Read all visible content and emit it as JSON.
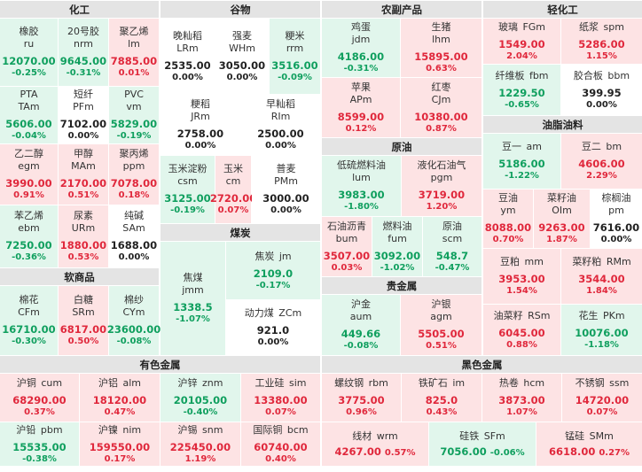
{
  "sections": {
    "chem": "化工",
    "grain": "谷物",
    "agri": "农副产品",
    "light": "轻化工",
    "soft": "软商品",
    "coal": "煤炭",
    "crude": "原油",
    "oil": "油脂油料",
    "precious": "贵金属",
    "nonferrous": "有色金属",
    "ferrous": "黑色金属"
  },
  "cells": {
    "ru": {
      "name": "橡胶",
      "code": "ru",
      "price": "12070.00",
      "change": "-0.25%"
    },
    "nr": {
      "name": "20号胶",
      "code": "nrm",
      "price": "9645.00",
      "change": "-0.31%"
    },
    "l": {
      "name": "聚乙烯",
      "code": "lm",
      "price": "7885.00",
      "change": "0.01%"
    },
    "ta": {
      "name": "PTA",
      "code": "TAm",
      "price": "5606.00",
      "change": "-0.04%"
    },
    "pf": {
      "name": "短纤",
      "code": "PFm",
      "price": "7102.00",
      "change": "0.00%"
    },
    "v": {
      "name": "PVC",
      "code": "vm",
      "price": "5829.00",
      "change": "-0.19%"
    },
    "eg": {
      "name": "乙二醇",
      "code": "egm",
      "price": "3990.00",
      "change": "0.91%"
    },
    "ma": {
      "name": "甲醇",
      "code": "MAm",
      "price": "2170.00",
      "change": "0.51%"
    },
    "pp": {
      "name": "聚丙烯",
      "code": "ppm",
      "price": "7078.00",
      "change": "0.18%"
    },
    "eb": {
      "name": "苯乙烯",
      "code": "ebm",
      "price": "7250.00",
      "change": "-0.36%"
    },
    "ur": {
      "name": "尿素",
      "code": "URm",
      "price": "1880.00",
      "change": "0.53%"
    },
    "sa": {
      "name": "纯碱",
      "code": "SAm",
      "price": "1688.00",
      "change": "0.00%"
    },
    "lr": {
      "name": "晚籼稻",
      "code": "LRm",
      "price": "2535.00",
      "change": "0.00%"
    },
    "wh": {
      "name": "强麦",
      "code": "WHm",
      "price": "3050.00",
      "change": "0.00%"
    },
    "rr": {
      "name": "粳米",
      "code": "rrm",
      "price": "3516.00",
      "change": "-0.09%"
    },
    "jr": {
      "name": "粳稻",
      "code": "JRm",
      "price": "2758.00",
      "change": "0.00%"
    },
    "ri": {
      "name": "早籼稻",
      "code": "RIm",
      "price": "2500.00",
      "change": "0.00%"
    },
    "cs": {
      "name": "玉米淀粉",
      "code": "csm",
      "price": "3125.00",
      "change": "-0.19%"
    },
    "c": {
      "name": "玉米",
      "code": "cm",
      "price": "2720.00",
      "change": "0.07%"
    },
    "pm": {
      "name": "普麦",
      "code": "PMm",
      "price": "3000.00",
      "change": "0.00%"
    },
    "jd": {
      "name": "鸡蛋",
      "code": "jdm",
      "price": "4186.00",
      "change": "-0.31%"
    },
    "lh": {
      "name": "生猪",
      "code": "lhm",
      "price": "15895.00",
      "change": "0.63%"
    },
    "ap": {
      "name": "苹果",
      "code": "APm",
      "price": "8599.00",
      "change": "0.12%"
    },
    "cj": {
      "name": "红枣",
      "code": "CJm",
      "price": "10380.00",
      "change": "0.87%"
    },
    "fg": {
      "name": "玻璃",
      "code": "FGm",
      "price": "1549.00",
      "change": "2.04%"
    },
    "sp": {
      "name": "纸浆",
      "code": "spm",
      "price": "5286.00",
      "change": "1.15%"
    },
    "fb": {
      "name": "纤维板",
      "code": "fbm",
      "price": "1229.50",
      "change": "-0.65%"
    },
    "bb": {
      "name": "胶合板",
      "code": "bbm",
      "price": "399.95",
      "change": "0.00%"
    },
    "cf": {
      "name": "棉花",
      "code": "CFm",
      "price": "16710.00",
      "change": "-0.30%"
    },
    "sr": {
      "name": "白糖",
      "code": "SRm",
      "price": "6817.00",
      "change": "0.50%"
    },
    "cy": {
      "name": "棉纱",
      "code": "CYm",
      "price": "23600.00",
      "change": "-0.08%"
    },
    "jm": {
      "name": "焦煤",
      "code": "jmm",
      "price": "1338.5",
      "change": "-1.07%"
    },
    "j": {
      "name": "焦炭",
      "code": "jm",
      "price": "2109.0",
      "change": "-0.17%"
    },
    "zc": {
      "name": "动力煤",
      "code": "ZCm",
      "price": "921.0",
      "change": "0.00%"
    },
    "lu": {
      "name": "低硫燃料油",
      "code": "lum",
      "price": "3983.00",
      "change": "-1.80%"
    },
    "pg": {
      "name": "液化石油气",
      "code": "pgm",
      "price": "3719.00",
      "change": "1.20%"
    },
    "bu": {
      "name": "石油沥青",
      "code": "bum",
      "price": "3507.00",
      "change": "0.03%"
    },
    "fu": {
      "name": "燃料油",
      "code": "fum",
      "price": "3092.00",
      "change": "-1.02%"
    },
    "sc": {
      "name": "原油",
      "code": "scm",
      "price": "548.7",
      "change": "-0.47%"
    },
    "a": {
      "name": "豆一",
      "code": "am",
      "price": "5186.00",
      "change": "-1.22%"
    },
    "b": {
      "name": "豆二",
      "code": "bm",
      "price": "4606.00",
      "change": "2.29%"
    },
    "y": {
      "name": "豆油",
      "code": "ym",
      "price": "8088.00",
      "change": "0.70%"
    },
    "oi": {
      "name": "菜籽油",
      "code": "OIm",
      "price": "9263.00",
      "change": "1.87%"
    },
    "pmoil": {
      "name": "棕榈油",
      "code": "pm",
      "price": "7616.00",
      "change": "0.00%"
    },
    "m": {
      "name": "豆粕",
      "code": "mm",
      "price": "3953.00",
      "change": "1.54%"
    },
    "rm": {
      "name": "菜籽粕",
      "code": "RMm",
      "price": "3544.00",
      "change": "1.84%"
    },
    "rs": {
      "name": "油菜籽",
      "code": "RSm",
      "price": "6045.00",
      "change": "0.88%"
    },
    "pk": {
      "name": "花生",
      "code": "PKm",
      "price": "10076.00",
      "change": "-1.18%"
    },
    "au": {
      "name": "沪金",
      "code": "aum",
      "price": "449.66",
      "change": "-0.08%"
    },
    "ag": {
      "name": "沪银",
      "code": "agm",
      "price": "5505.00",
      "change": "0.51%"
    },
    "cu": {
      "name": "沪铜",
      "code": "cum",
      "price": "68290.00",
      "change": "0.37%"
    },
    "al": {
      "name": "沪铝",
      "code": "alm",
      "price": "18120.00",
      "change": "0.47%"
    },
    "zn": {
      "name": "沪锌",
      "code": "znm",
      "price": "20105.00",
      "change": "-0.40%"
    },
    "si": {
      "name": "工业硅",
      "code": "sim",
      "price": "13380.00",
      "change": "0.07%"
    },
    "pb": {
      "name": "沪铅",
      "code": "pbm",
      "price": "15535.00",
      "change": "-0.38%"
    },
    "ni": {
      "name": "沪镍",
      "code": "nim",
      "price": "159550.00",
      "change": "0.17%"
    },
    "sn": {
      "name": "沪锡",
      "code": "snm",
      "price": "225450.00",
      "change": "1.19%"
    },
    "bc": {
      "name": "国际铜",
      "code": "bcm",
      "price": "60740.00",
      "change": "0.40%"
    },
    "rb": {
      "name": "螺纹钢",
      "code": "rbm",
      "price": "3775.00",
      "change": "0.96%"
    },
    "i": {
      "name": "铁矿石",
      "code": "im",
      "price": "825.0",
      "change": "0.43%"
    },
    "hc": {
      "name": "热卷",
      "code": "hcm",
      "price": "3873.00",
      "change": "1.07%"
    },
    "ss": {
      "name": "不锈钢",
      "code": "ssm",
      "price": "14720.00",
      "change": "0.07%"
    },
    "wr": {
      "name": "线材",
      "code": "wrm",
      "price": "4267.00",
      "change": "0.57%"
    },
    "sf": {
      "name": "硅铁",
      "code": "SFm",
      "price": "7056.00",
      "change": "-0.06%"
    },
    "sm": {
      "name": "锰硅",
      "code": "SMm",
      "price": "6618.00",
      "change": "0.27%"
    }
  },
  "colors": {
    "up": "#e0283c",
    "down": "#0f9f5e",
    "up_bg": "#fde3e4",
    "down_bg": "#e1f6ec",
    "header_bg": "#e4e4e4"
  }
}
